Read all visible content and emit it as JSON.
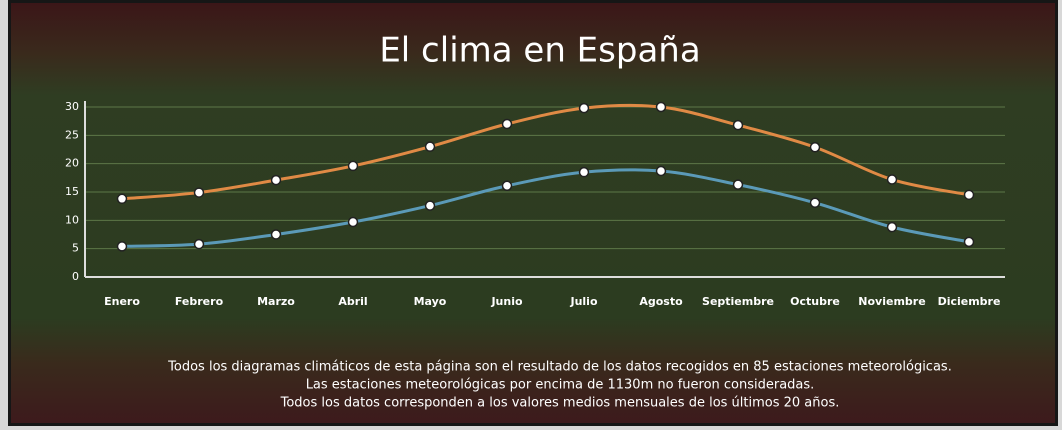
{
  "chart_data": {
    "type": "line",
    "title": "El clima en España",
    "categories": [
      "Enero",
      "Febrero",
      "Marzo",
      "Abril",
      "Mayo",
      "Junio",
      "Julio",
      "Agosto",
      "Septiembre",
      "Octubre",
      "Noviembre",
      "Diciembre"
    ],
    "series": [
      {
        "color": "#e08a45",
        "values": [
          13.8,
          14.9,
          17.1,
          19.6,
          23.0,
          27.0,
          29.8,
          30.0,
          26.8,
          22.9,
          17.2,
          14.5
        ]
      },
      {
        "color": "#5b9ab8",
        "values": [
          5.4,
          5.8,
          7.5,
          9.7,
          12.6,
          16.1,
          18.5,
          18.7,
          16.3,
          13.1,
          8.8,
          6.2
        ]
      }
    ],
    "ylim": [
      0,
      30
    ],
    "yticks": [
      0,
      5,
      10,
      15,
      20,
      25,
      30
    ],
    "grid": true,
    "notes": [
      "Todos los diagramas climáticos de esta página son el resultado de los datos recogidos en 85 estaciones meteorológicas.",
      "Las estaciones meteorológicas por encima de 1130m no fueron consideradas.",
      "Todos los datos corresponden a los valores medios mensuales de los últimos 20 años."
    ]
  }
}
